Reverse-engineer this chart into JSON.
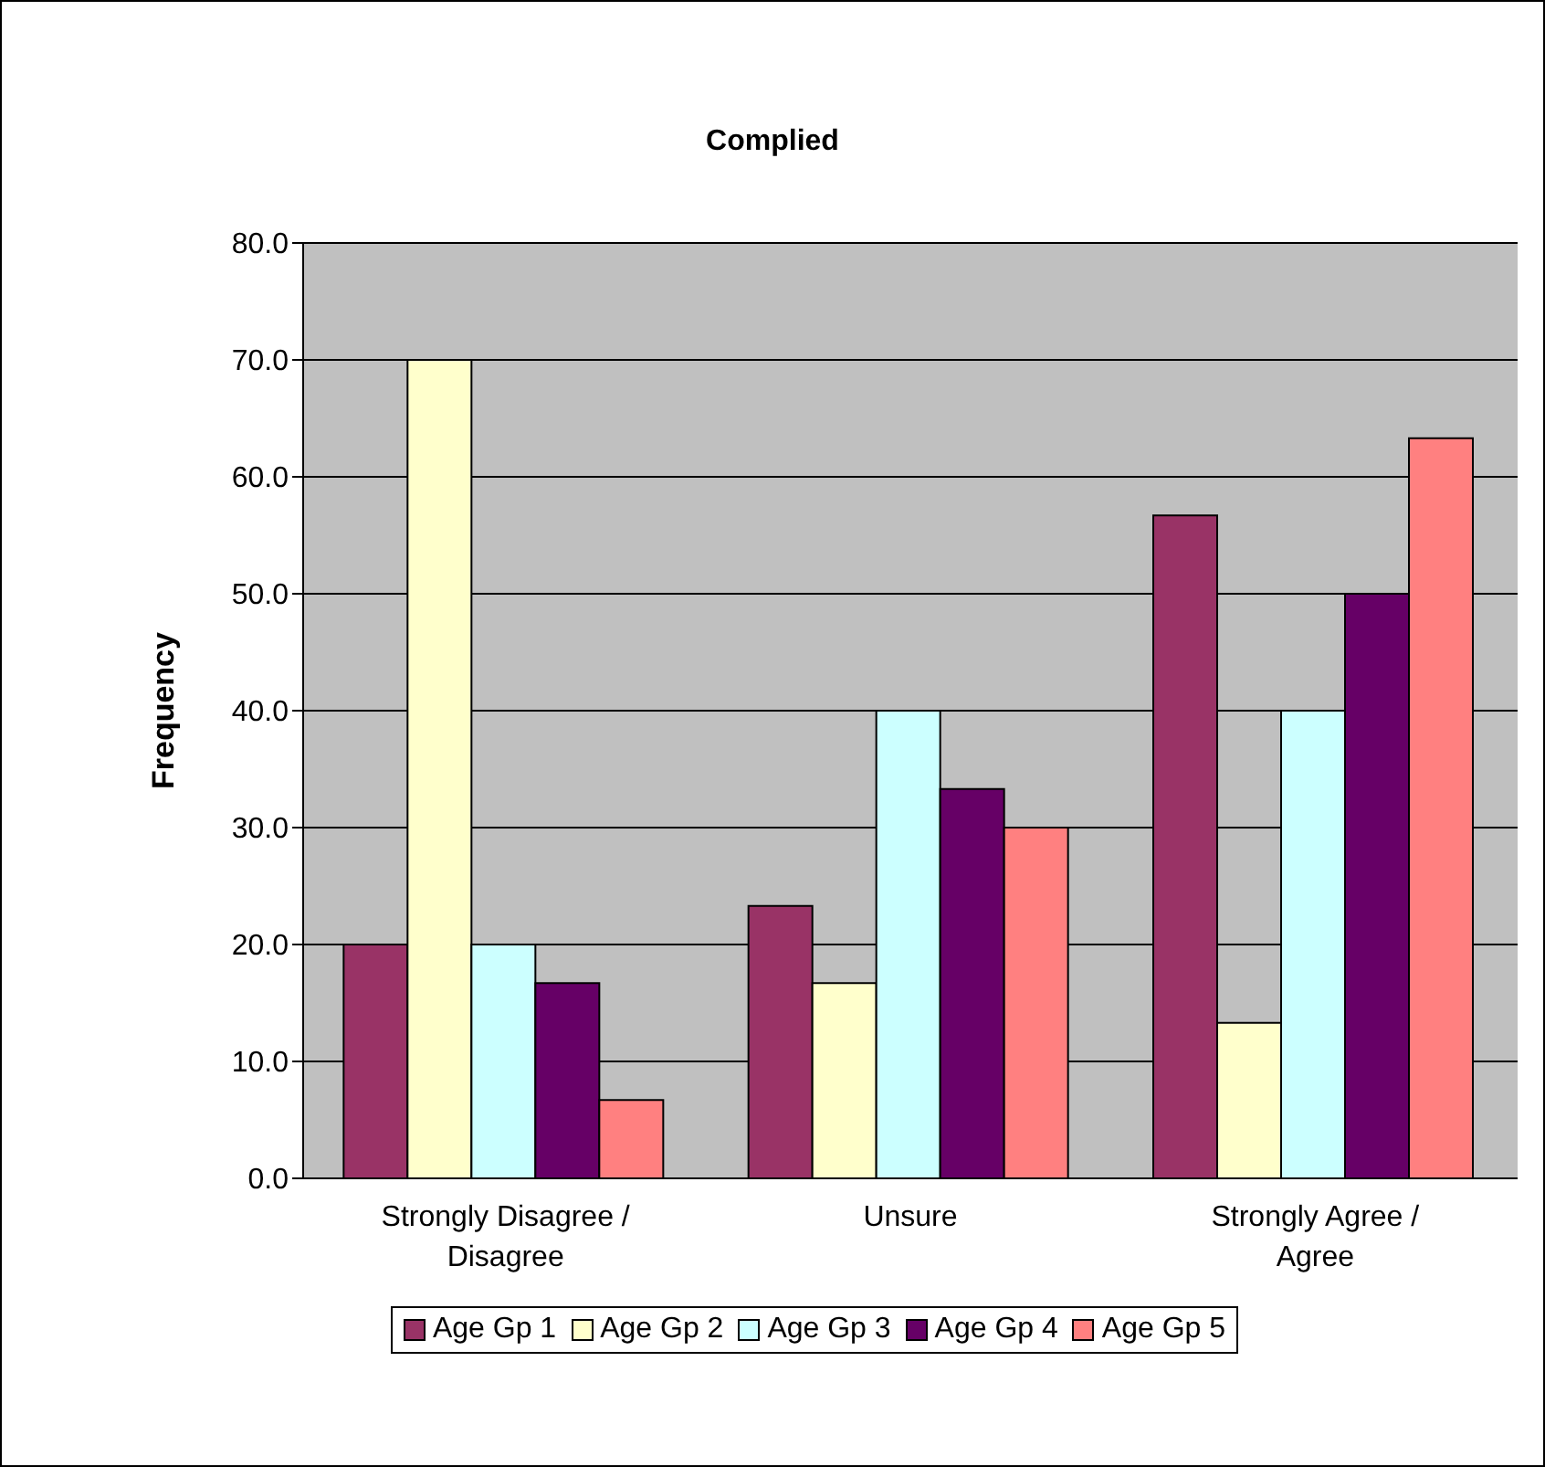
{
  "chart_data": {
    "type": "bar",
    "title": "Complied",
    "ylabel": "Frequency",
    "categories": [
      "Strongly Disagree / Disagree",
      "Unsure",
      "Strongly Agree / Agree"
    ],
    "series": [
      {
        "name": "Age Gp 1",
        "color": "#993366",
        "values": [
          20.0,
          23.3,
          56.7
        ]
      },
      {
        "name": "Age Gp 2",
        "color": "#ffffcc",
        "values": [
          70.0,
          16.7,
          13.3
        ]
      },
      {
        "name": "Age Gp 3",
        "color": "#ccffff",
        "values": [
          20.0,
          40.0,
          40.0
        ]
      },
      {
        "name": "Age Gp 4",
        "color": "#660066",
        "values": [
          16.7,
          33.3,
          50.0
        ]
      },
      {
        "name": "Age Gp 5",
        "color": "#ff8080",
        "values": [
          6.7,
          30.0,
          63.3
        ]
      }
    ],
    "ylim": [
      0,
      80
    ],
    "yticks": [
      {
        "value": 0,
        "label": "0.0"
      },
      {
        "value": 10,
        "label": "10.0"
      },
      {
        "value": 20,
        "label": "20.0"
      },
      {
        "value": 30,
        "label": "30.0"
      },
      {
        "value": 40,
        "label": "40.0"
      },
      {
        "value": 50,
        "label": "50.0"
      },
      {
        "value": 60,
        "label": "60.0"
      },
      {
        "value": 70,
        "label": "70.0"
      },
      {
        "value": 80,
        "label": "80.0"
      }
    ],
    "grid": "y",
    "legend": "bottom"
  }
}
